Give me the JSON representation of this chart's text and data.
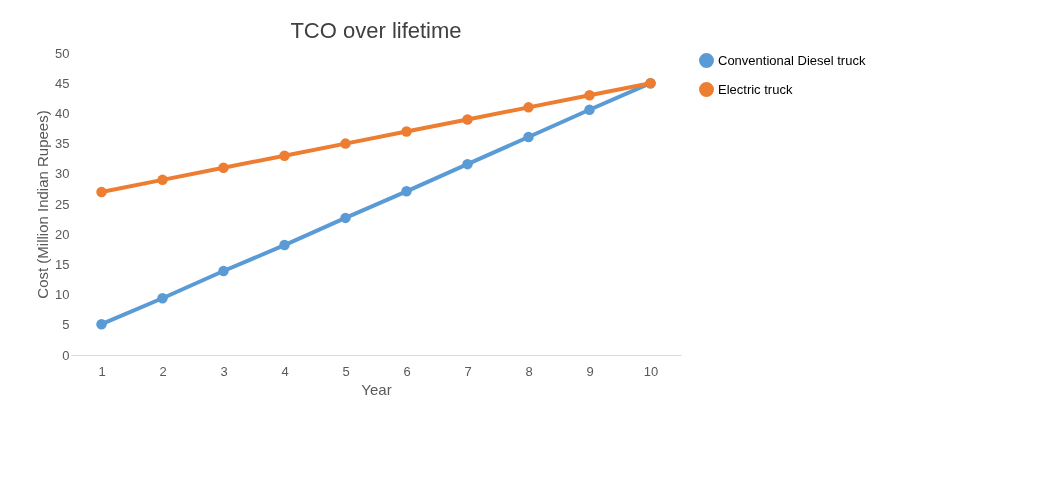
{
  "chart_data": {
    "type": "line",
    "title": "TCO over lifetime",
    "xlabel": "Year",
    "ylabel": "Cost (Million Indian Rupees)",
    "categories": [
      "1",
      "2",
      "3",
      "4",
      "5",
      "6",
      "7",
      "8",
      "9",
      "10"
    ],
    "series": [
      {
        "name": "Conventional Diesel truck",
        "color": "#5b9bd5",
        "values": [
          5.1,
          9.4,
          13.9,
          18.2,
          22.7,
          27.1,
          31.6,
          36.1,
          40.6,
          45
        ]
      },
      {
        "name": "Electric truck",
        "color": "#ed7d31",
        "values": [
          27,
          29,
          31,
          33,
          35,
          37,
          39,
          41,
          43,
          45
        ]
      }
    ],
    "ylim": [
      0,
      50
    ],
    "yticks": [
      0,
      5,
      10,
      15,
      20,
      25,
      30,
      35,
      40,
      45,
      50
    ],
    "grid": false,
    "legend": "right",
    "marker": "circle",
    "line_style": "solid"
  }
}
